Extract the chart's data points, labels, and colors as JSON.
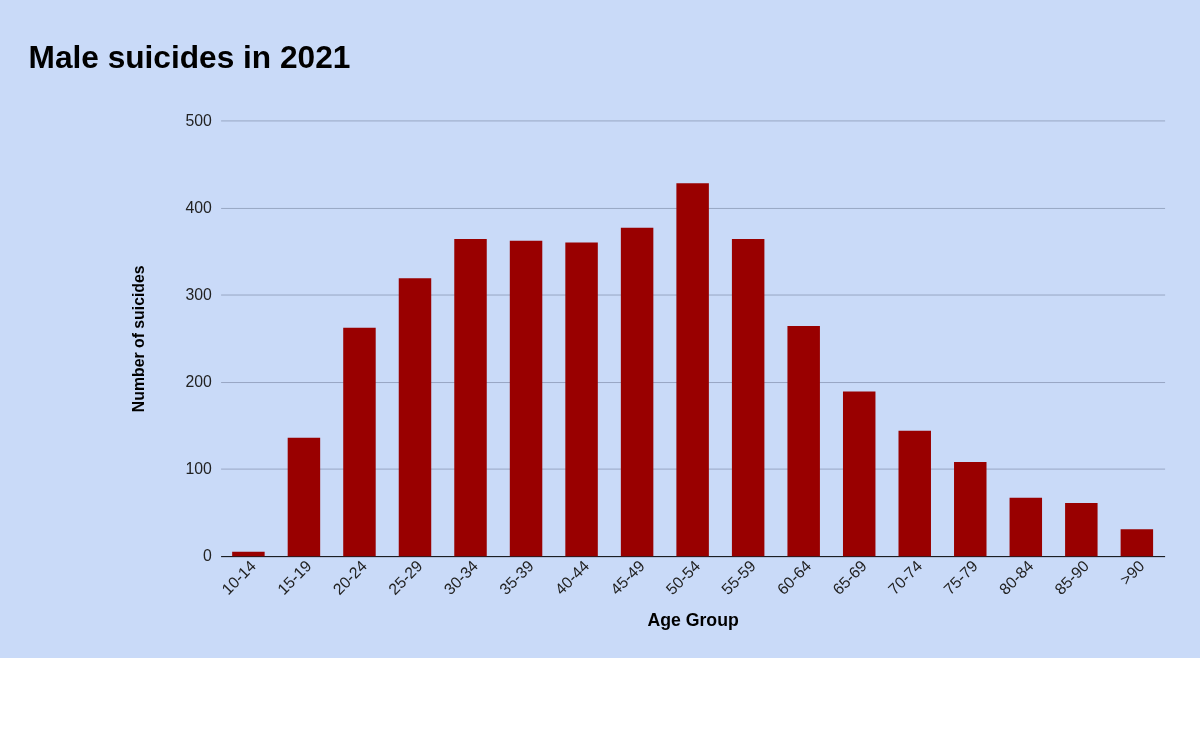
{
  "chart_data": {
    "type": "bar",
    "title": "Male suicides in 2021",
    "xlabel": "Age Group",
    "ylabel": "Number of suicides",
    "categories": [
      "10-14",
      "15-19",
      "20-24",
      "25-29",
      "30-34",
      "35-39",
      "40-44",
      "45-49",
      "50-54",
      "55-59",
      "60-64",
      "65-69",
      "70-74",
      "75-79",
      "80-84",
      "85-90",
      ">90"
    ],
    "values": [
      5,
      136,
      262,
      319,
      364,
      362,
      360,
      377,
      428,
      364,
      264,
      189,
      144,
      108,
      67,
      61,
      31
    ],
    "color": "#990000",
    "ylim": [
      0,
      500
    ],
    "yticks": [
      0,
      100,
      200,
      300,
      400,
      500
    ],
    "grid": "y"
  }
}
